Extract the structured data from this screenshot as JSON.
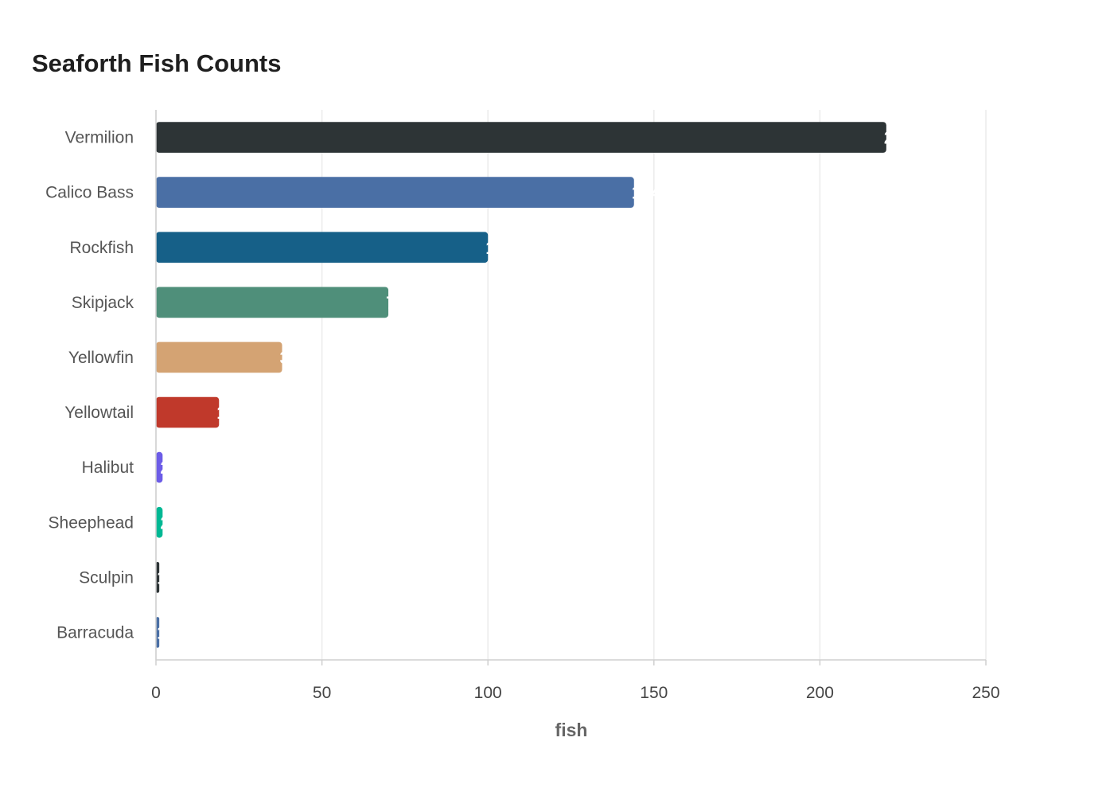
{
  "chart_data": {
    "type": "bar",
    "orientation": "horizontal",
    "title": "Seaforth Fish Counts",
    "xlabel": "fish",
    "ylabel": "",
    "xlim": [
      0,
      250
    ],
    "xticks": [
      0,
      50,
      100,
      150,
      200,
      250
    ],
    "grid": true,
    "legend": "none",
    "categories": [
      "Vermilion",
      "Calico Bass",
      "Rockfish",
      "Skipjack",
      "Yellowfin",
      "Yellowtail",
      "Halibut",
      "Sheephead",
      "Sculpin",
      "Barracuda"
    ],
    "values": [
      220,
      144,
      100,
      70,
      38,
      19,
      2,
      2,
      1,
      1
    ],
    "colors": [
      "#2d3436",
      "#4a6fa5",
      "#166088",
      "#4f8f7a",
      "#d4a373",
      "#c0392b",
      "#6c5ce7",
      "#00b894",
      "#2d3436",
      "#4a6fa5"
    ]
  }
}
